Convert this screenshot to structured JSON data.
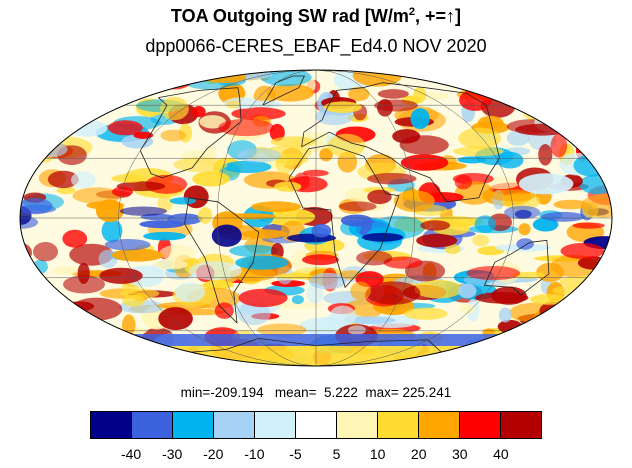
{
  "title": {
    "prefix": "TOA Outgoing SW rad [W/m",
    "superscript": "2",
    "suffix": ", +=↑]"
  },
  "subtitle": "dpp0066-CERES_EBAF_Ed4.0 NOV 2020",
  "stats": {
    "min_label": "min=",
    "min": "-209.194",
    "mean_label": "mean=",
    "mean": "5.222",
    "max_label": "max=",
    "max": "225.241"
  },
  "colorbar": {
    "colors": [
      "#00008b",
      "#3d62e0",
      "#00b4f0",
      "#a5d2f5",
      "#d2f0fa",
      "#ffffff",
      "#fff5b4",
      "#ffdc32",
      "#ffa500",
      "#ff0000",
      "#b40000"
    ],
    "labels": [
      "-40",
      "-30",
      "-20",
      "-10",
      "-5",
      "5",
      "10",
      "20",
      "30",
      "40"
    ]
  },
  "map": {
    "projection": "mollweide",
    "field": "TOA outgoing SW radiation difference",
    "gridlines": true
  }
}
